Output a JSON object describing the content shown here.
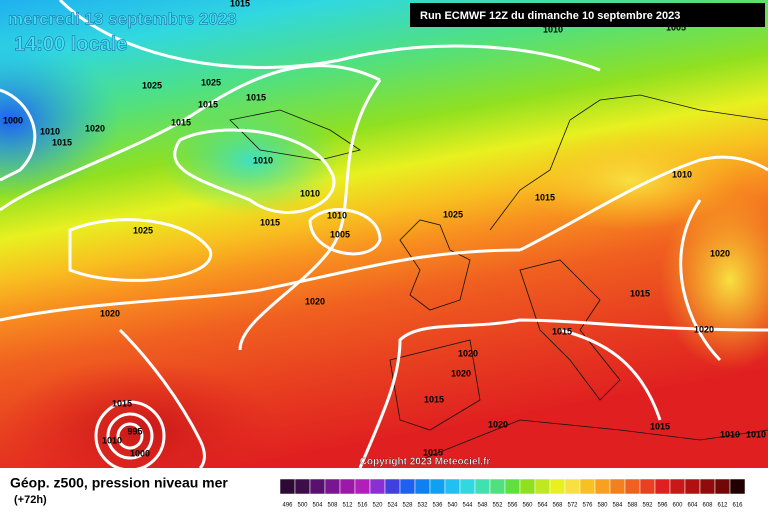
{
  "header": {
    "date": "mercredi 13 septembre 2023",
    "time": "14:00 locale",
    "run": "Run ECMWF 12Z du dimanche 10 septembre 2023"
  },
  "map": {
    "isobar_labels": [
      1015,
      1010,
      1005,
      1025,
      1025,
      1015,
      1015,
      1000,
      1010,
      1015,
      1020,
      1015,
      1010,
      1010,
      1010,
      1005,
      1015,
      1025,
      1025,
      1015,
      1010,
      1020,
      1015,
      1015,
      1020,
      1020,
      1020,
      1020,
      1020,
      1015,
      1020,
      1015,
      1015,
      1015,
      1010,
      1010,
      1010,
      995,
      1000
    ],
    "copyright": "Copyright 2023 Meteociel.fr"
  },
  "footer": {
    "title": "Géop. z500, pression niveau mer",
    "lead": "(+72h)"
  },
  "legend": {
    "values": [
      496,
      500,
      504,
      508,
      512,
      516,
      520,
      524,
      528,
      532,
      536,
      540,
      544,
      548,
      552,
      556,
      560,
      564,
      568,
      572,
      576,
      580,
      584,
      588,
      592,
      596,
      600,
      604,
      608,
      612,
      616
    ],
    "colors": [
      "#2d0a35",
      "#3d0d4a",
      "#5a1070",
      "#7a1590",
      "#9b18a8",
      "#b020b8",
      "#8a30d0",
      "#4040e0",
      "#2060f0",
      "#1080f0",
      "#10a0f0",
      "#20c0f0",
      "#30d8e0",
      "#40e0b0",
      "#50e080",
      "#60e040",
      "#90e020",
      "#c0e820",
      "#e8f020",
      "#f8e040",
      "#f8c020",
      "#f8a020",
      "#f08020",
      "#f06020",
      "#e84020",
      "#e02020",
      "#c81818",
      "#b01010",
      "#900c0c",
      "#700808",
      "#200000"
    ]
  }
}
